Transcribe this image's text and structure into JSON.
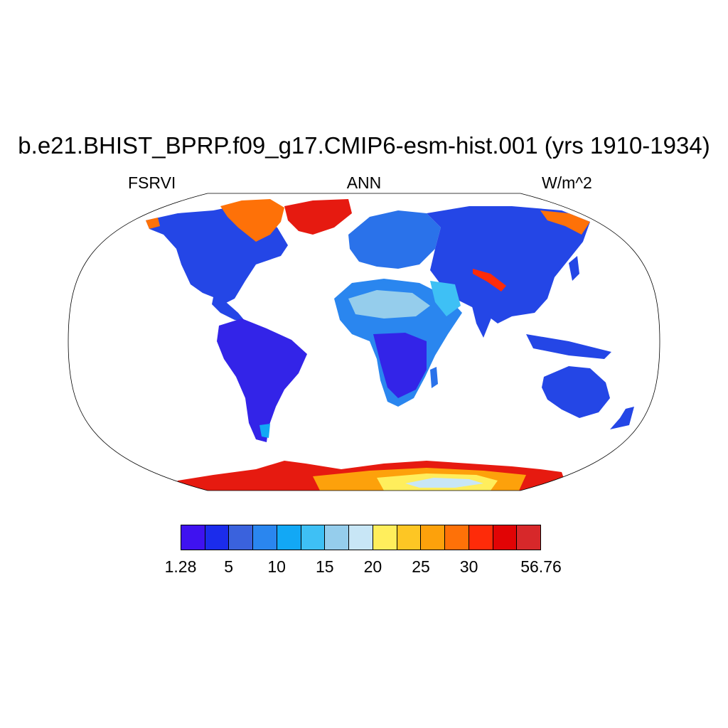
{
  "title": "b.e21.BHIST_BPRP.f09_g17.CMIP6-esm-hist.001 (yrs 1910-1934)",
  "subtitle_left": "FSRVI",
  "subtitle_center": "ANN",
  "subtitle_right": "W/m^2",
  "map": {
    "projection": "robinson",
    "field": "FSRVI",
    "season": "ANN",
    "units": "W/m^2"
  },
  "colorbar": {
    "colors": [
      "#3f12f0",
      "#1b2cec",
      "#3a62dd",
      "#2a86ef",
      "#12a8f5",
      "#3ec0f5",
      "#95cdec",
      "#c8e6f6",
      "#ffee5c",
      "#fdc624",
      "#fda10b",
      "#fe7108",
      "#fe2b09",
      "#e10405",
      "#d7282a"
    ],
    "labels": [
      {
        "text": "1.28",
        "index": 0
      },
      {
        "text": "5",
        "index": 2
      },
      {
        "text": "10",
        "index": 4
      },
      {
        "text": "15",
        "index": 6
      },
      {
        "text": "20",
        "index": 8
      },
      {
        "text": "25",
        "index": 10
      },
      {
        "text": "30",
        "index": 12
      },
      {
        "text": "56.76",
        "index": 15
      }
    ]
  }
}
